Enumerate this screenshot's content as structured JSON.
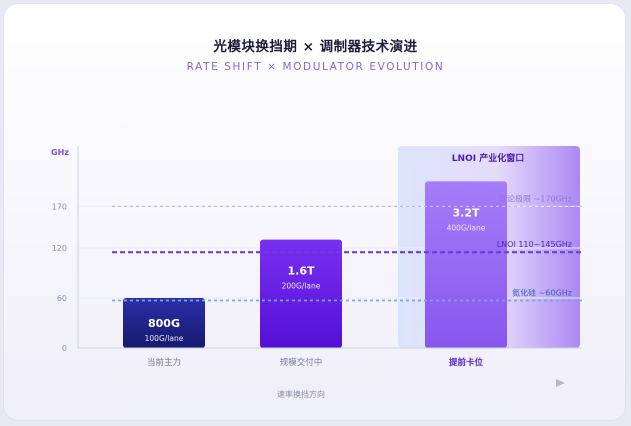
{
  "title": "光模块换挡期 × 调制器技术演进",
  "subtitle": "RATE SHIFT × MODULATOR EVOLUTION",
  "chart_data": {
    "type": "bar",
    "ylabel": "GHz",
    "ylim": [
      0,
      200
    ],
    "yticks": [
      {
        "value": 0,
        "label": "0"
      },
      {
        "value": 60,
        "label": "60"
      },
      {
        "value": 120,
        "label": "120"
      },
      {
        "value": 170,
        "label": "170"
      }
    ],
    "categories": [
      "当前主力",
      "规模交付中",
      "提前卡位"
    ],
    "highlight_category_index": 2,
    "bars": [
      {
        "rate": "800G",
        "lane": "100G/lane",
        "value": 60,
        "color_top": "#2c2fa8",
        "color_bottom": "#151a6e"
      },
      {
        "rate": "1.6T",
        "lane": "200G/lane",
        "value": 130,
        "color_top": "#7a2ff0",
        "color_bottom": "#5410d6"
      },
      {
        "rate": "3.2T",
        "lane": "400G/lane",
        "value": 200,
        "color_top": "#a57cf8",
        "color_bottom": "#8856ee"
      }
    ],
    "reference_lines": [
      {
        "label": "理论极限 ~170GHz",
        "value": 170,
        "color": "#c4b6ee",
        "text_color": "#8f7ad6",
        "width": 1.2
      },
      {
        "label": "LNOI 110~145GHz",
        "value": 115,
        "color": "#6a3fe0",
        "text_color": "#4b24b8",
        "width": 2.2
      },
      {
        "label": "氮化硅 ~60GHz",
        "value": 57,
        "color": "#74a8ea",
        "text_color": "#3a62c0",
        "width": 1.8
      }
    ],
    "window": {
      "label": "LNOI 产业化窗口"
    },
    "direction_label": "速率换挡方向"
  }
}
